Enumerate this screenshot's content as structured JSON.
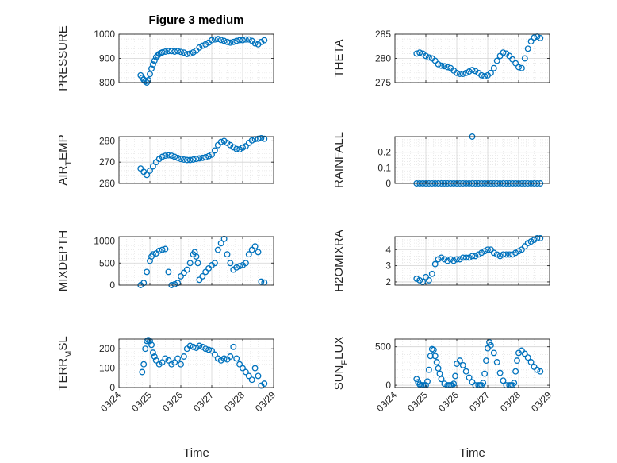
{
  "colors": {
    "marker": "#0072BD",
    "axis": "#262626",
    "grid": "#d4d4d4",
    "minor_grid": "#e4e4e4"
  },
  "chart_data": [
    {
      "type": "scatter",
      "title": "Figure 3 medium",
      "xlabel": "",
      "ylabel": "PRESSURE",
      "ylim": [
        800,
        1000
      ],
      "yticks": [
        800,
        900,
        1000
      ],
      "x_is_date": true,
      "xlim": [
        "03/24",
        "03/29"
      ],
      "xticks": [
        "03/24",
        "03/25",
        "03/26",
        "03/27",
        "03/28",
        "03/29"
      ],
      "grid": true,
      "minor_grid": true,
      "show_xticklabels": false,
      "x": [
        24.7,
        24.75,
        24.8,
        24.85,
        24.9,
        24.95,
        25.0,
        25.05,
        25.1,
        25.15,
        25.2,
        25.25,
        25.3,
        25.35,
        25.4,
        25.5,
        25.6,
        25.7,
        25.8,
        25.9,
        26.0,
        26.1,
        26.2,
        26.3,
        26.4,
        26.5,
        26.6,
        26.7,
        26.8,
        26.9,
        27.0,
        27.1,
        27.2,
        27.3,
        27.4,
        27.5,
        27.6,
        27.7,
        27.8,
        27.9,
        28.0,
        28.1,
        28.2,
        28.3,
        28.4,
        28.5,
        28.6,
        28.7
      ],
      "y": [
        830,
        820,
        812,
        805,
        800,
        810,
        835,
        858,
        875,
        890,
        905,
        912,
        918,
        922,
        925,
        928,
        930,
        930,
        928,
        930,
        927,
        924,
        918,
        920,
        925,
        932,
        945,
        952,
        958,
        965,
        975,
        978,
        980,
        976,
        972,
        968,
        965,
        968,
        972,
        975,
        975,
        978,
        978,
        972,
        962,
        958,
        968,
        975
      ]
    },
    {
      "type": "scatter",
      "xlabel": "",
      "ylabel": "THETA",
      "ylim": [
        275,
        285
      ],
      "yticks": [
        275,
        280,
        285
      ],
      "x_is_date": true,
      "xlim": [
        "03/24",
        "03/29"
      ],
      "xticks": [
        "03/24",
        "03/25",
        "03/26",
        "03/27",
        "03/28",
        "03/29"
      ],
      "grid": true,
      "minor_grid": true,
      "show_xticklabels": false,
      "x": [
        24.7,
        24.8,
        24.9,
        25.0,
        25.1,
        25.2,
        25.3,
        25.4,
        25.5,
        25.6,
        25.7,
        25.8,
        25.9,
        26.0,
        26.1,
        26.2,
        26.3,
        26.4,
        26.5,
        26.6,
        26.7,
        26.8,
        26.9,
        27.0,
        27.1,
        27.2,
        27.3,
        27.4,
        27.5,
        27.6,
        27.7,
        27.8,
        27.9,
        28.0,
        28.1,
        28.2,
        28.3,
        28.4,
        28.5,
        28.6,
        28.7
      ],
      "y": [
        281,
        281.2,
        281.0,
        280.5,
        280.2,
        280.0,
        279.5,
        278.8,
        278.5,
        278.4,
        278.2,
        278.0,
        277.5,
        277.0,
        276.8,
        276.8,
        277.0,
        277.3,
        277.6,
        277.4,
        277.0,
        276.5,
        276.3,
        276.5,
        277.0,
        278.0,
        279.5,
        280.5,
        281.2,
        281.0,
        280.5,
        279.8,
        279.0,
        278.2,
        278.0,
        280.0,
        282.0,
        283.5,
        284.3,
        284.5,
        284.2
      ]
    },
    {
      "type": "scatter",
      "xlabel": "",
      "ylabel": "AIR_TEMP",
      "ylim": [
        260,
        282
      ],
      "yticks": [
        260,
        270,
        280
      ],
      "x_is_date": true,
      "xlim": [
        "03/24",
        "03/29"
      ],
      "xticks": [
        "03/24",
        "03/25",
        "03/26",
        "03/27",
        "03/28",
        "03/29"
      ],
      "grid": true,
      "minor_grid": true,
      "show_xticklabels": false,
      "x": [
        24.7,
        24.8,
        24.9,
        25.0,
        25.1,
        25.2,
        25.3,
        25.4,
        25.5,
        25.6,
        25.7,
        25.8,
        25.9,
        26.0,
        26.1,
        26.2,
        26.3,
        26.4,
        26.5,
        26.6,
        26.7,
        26.8,
        26.9,
        27.0,
        27.1,
        27.2,
        27.3,
        27.4,
        27.5,
        27.6,
        27.7,
        27.8,
        27.9,
        28.0,
        28.1,
        28.2,
        28.3,
        28.4,
        28.5,
        28.6,
        28.7
      ],
      "y": [
        267,
        265.5,
        264,
        266,
        268,
        270,
        271.5,
        272.5,
        273,
        273.2,
        273,
        272.5,
        272,
        271.5,
        271.2,
        271,
        271,
        271.2,
        271.5,
        271.8,
        272,
        272.3,
        272.8,
        273.5,
        275.5,
        278,
        279.5,
        280,
        279,
        278,
        277,
        276.2,
        276,
        276.8,
        277.5,
        279,
        280.2,
        280.8,
        281,
        281.3,
        281
      ]
    },
    {
      "type": "scatter",
      "xlabel": "",
      "ylabel": "RAINFALL",
      "ylim": [
        0,
        0.3
      ],
      "yticks": [
        0,
        0.1,
        0.2
      ],
      "x_is_date": true,
      "xlim": [
        "03/24",
        "03/29"
      ],
      "xticks": [
        "03/24",
        "03/25",
        "03/26",
        "03/27",
        "03/28",
        "03/29"
      ],
      "grid": true,
      "minor_grid": true,
      "show_xticklabels": false,
      "x": [
        24.7,
        24.8,
        24.9,
        25.0,
        25.1,
        25.2,
        25.3,
        25.4,
        25.5,
        25.6,
        25.7,
        25.8,
        25.9,
        26.0,
        26.1,
        26.2,
        26.3,
        26.4,
        26.5,
        26.6,
        26.7,
        26.8,
        26.9,
        27.0,
        27.1,
        27.2,
        27.3,
        27.4,
        27.5,
        27.6,
        27.7,
        27.8,
        27.9,
        28.0,
        28.1,
        28.2,
        28.3,
        28.4,
        28.5,
        28.6,
        28.7,
        26.5
      ],
      "y": [
        0,
        0,
        0,
        0,
        0,
        0,
        0,
        0,
        0,
        0,
        0,
        0,
        0,
        0,
        0,
        0,
        0,
        0,
        0,
        0,
        0,
        0,
        0,
        0,
        0,
        0,
        0,
        0,
        0,
        0,
        0,
        0,
        0,
        0,
        0,
        0,
        0,
        0,
        0,
        0,
        0,
        0.3
      ]
    },
    {
      "type": "scatter",
      "xlabel": "",
      "ylabel": "MIXDEPTH",
      "ylim": [
        0,
        1100
      ],
      "yticks": [
        0,
        500,
        1000
      ],
      "x_is_date": true,
      "xlim": [
        "03/24",
        "03/29"
      ],
      "xticks": [
        "03/24",
        "03/25",
        "03/26",
        "03/27",
        "03/28",
        "03/29"
      ],
      "grid": true,
      "minor_grid": true,
      "show_xticklabels": false,
      "x": [
        24.7,
        24.8,
        24.9,
        25.0,
        25.05,
        25.1,
        25.2,
        25.3,
        25.4,
        25.5,
        25.6,
        25.7,
        25.8,
        25.9,
        26.0,
        26.1,
        26.2,
        26.3,
        26.4,
        26.45,
        26.5,
        26.55,
        26.6,
        26.7,
        26.8,
        26.9,
        27.0,
        27.1,
        27.2,
        27.3,
        27.4,
        27.5,
        27.6,
        27.7,
        27.8,
        27.9,
        28.0,
        28.1,
        28.2,
        28.3,
        28.4,
        28.5,
        28.6,
        28.7
      ],
      "y": [
        0,
        50,
        300,
        550,
        650,
        700,
        720,
        780,
        800,
        820,
        300,
        0,
        20,
        50,
        200,
        280,
        350,
        500,
        700,
        750,
        650,
        500,
        120,
        200,
        300,
        380,
        450,
        500,
        800,
        950,
        1050,
        700,
        500,
        350,
        400,
        430,
        450,
        500,
        700,
        800,
        880,
        750,
        80,
        60
      ]
    },
    {
      "type": "scatter",
      "xlabel": "",
      "ylabel": "H2OMIXRA",
      "ylim": [
        1.8,
        4.8
      ],
      "yticks": [
        2,
        3,
        4
      ],
      "x_is_date": true,
      "xlim": [
        "03/24",
        "03/29"
      ],
      "xticks": [
        "03/24",
        "03/25",
        "03/26",
        "03/27",
        "03/28",
        "03/29"
      ],
      "grid": true,
      "minor_grid": true,
      "show_xticklabels": false,
      "x": [
        24.7,
        24.8,
        24.9,
        25.0,
        25.1,
        25.2,
        25.3,
        25.4,
        25.5,
        25.6,
        25.7,
        25.8,
        25.9,
        26.0,
        26.1,
        26.2,
        26.3,
        26.4,
        26.5,
        26.6,
        26.7,
        26.8,
        26.9,
        27.0,
        27.1,
        27.2,
        27.3,
        27.4,
        27.5,
        27.6,
        27.7,
        27.8,
        27.9,
        28.0,
        28.1,
        28.2,
        28.3,
        28.4,
        28.5,
        28.6,
        28.7
      ],
      "y": [
        2.2,
        2.1,
        2.0,
        2.3,
        2.1,
        2.5,
        3.1,
        3.4,
        3.5,
        3.4,
        3.3,
        3.4,
        3.3,
        3.4,
        3.4,
        3.5,
        3.5,
        3.5,
        3.6,
        3.6,
        3.7,
        3.8,
        3.9,
        4.0,
        4.0,
        3.8,
        3.7,
        3.6,
        3.7,
        3.7,
        3.7,
        3.7,
        3.8,
        3.9,
        4.0,
        4.2,
        4.4,
        4.5,
        4.6,
        4.7,
        4.7
      ]
    },
    {
      "type": "scatter",
      "xlabel": "Time",
      "ylabel": "TERR_MSL",
      "ylim": [
        0,
        250
      ],
      "yticks": [
        0,
        100,
        200
      ],
      "x_is_date": true,
      "xlim": [
        "03/24",
        "03/29"
      ],
      "xticks": [
        "03/24",
        "03/25",
        "03/26",
        "03/27",
        "03/28",
        "03/29"
      ],
      "grid": true,
      "minor_grid": true,
      "show_xticklabels": true,
      "x": [
        24.75,
        24.8,
        24.85,
        24.9,
        24.95,
        25.0,
        25.05,
        25.1,
        25.15,
        25.2,
        25.3,
        25.4,
        25.5,
        25.6,
        25.7,
        25.8,
        25.9,
        26.0,
        26.1,
        26.2,
        26.3,
        26.4,
        26.5,
        26.6,
        26.7,
        26.8,
        26.9,
        27.0,
        27.1,
        27.2,
        27.3,
        27.4,
        27.5,
        27.6,
        27.7,
        27.8,
        27.9,
        28.0,
        28.1,
        28.2,
        28.3,
        28.4,
        28.5,
        28.6,
        28.7
      ],
      "y": [
        80,
        120,
        200,
        240,
        245,
        240,
        220,
        180,
        160,
        140,
        120,
        130,
        150,
        140,
        120,
        130,
        150,
        120,
        160,
        200,
        215,
        210,
        205,
        215,
        210,
        200,
        195,
        190,
        170,
        150,
        140,
        150,
        145,
        160,
        210,
        150,
        120,
        100,
        80,
        60,
        40,
        100,
        60,
        10,
        20
      ]
    },
    {
      "type": "scatter",
      "xlabel": "Time",
      "ylabel": "SUN_FLUX",
      "ylim": [
        -30,
        600
      ],
      "yticks": [
        0,
        500
      ],
      "x_is_date": true,
      "xlim": [
        "03/24",
        "03/29"
      ],
      "xticks": [
        "03/24",
        "03/25",
        "03/26",
        "03/27",
        "03/28",
        "03/29"
      ],
      "grid": true,
      "minor_grid": true,
      "show_xticklabels": true,
      "x": [
        24.7,
        24.75,
        24.8,
        24.85,
        24.9,
        24.95,
        25.0,
        25.05,
        25.1,
        25.15,
        25.2,
        25.25,
        25.3,
        25.35,
        25.4,
        25.45,
        25.5,
        25.6,
        25.7,
        25.75,
        25.8,
        25.85,
        25.9,
        25.95,
        26.0,
        26.1,
        26.2,
        26.3,
        26.4,
        26.5,
        26.6,
        26.7,
        26.75,
        26.8,
        26.85,
        26.9,
        26.95,
        27.0,
        27.05,
        27.1,
        27.2,
        27.3,
        27.4,
        27.5,
        27.6,
        27.7,
        27.75,
        27.8,
        27.85,
        27.9,
        27.95,
        28.0,
        28.1,
        28.2,
        28.3,
        28.4,
        28.5,
        28.6,
        28.7
      ],
      "y": [
        80,
        40,
        10,
        0,
        0,
        0,
        0,
        50,
        200,
        380,
        470,
        460,
        380,
        300,
        220,
        150,
        80,
        20,
        0,
        0,
        0,
        0,
        20,
        120,
        280,
        320,
        260,
        180,
        100,
        40,
        0,
        0,
        0,
        0,
        30,
        150,
        320,
        480,
        560,
        520,
        420,
        300,
        160,
        60,
        0,
        0,
        0,
        0,
        30,
        180,
        320,
        420,
        450,
        410,
        360,
        300,
        240,
        200,
        180
      ]
    }
  ]
}
